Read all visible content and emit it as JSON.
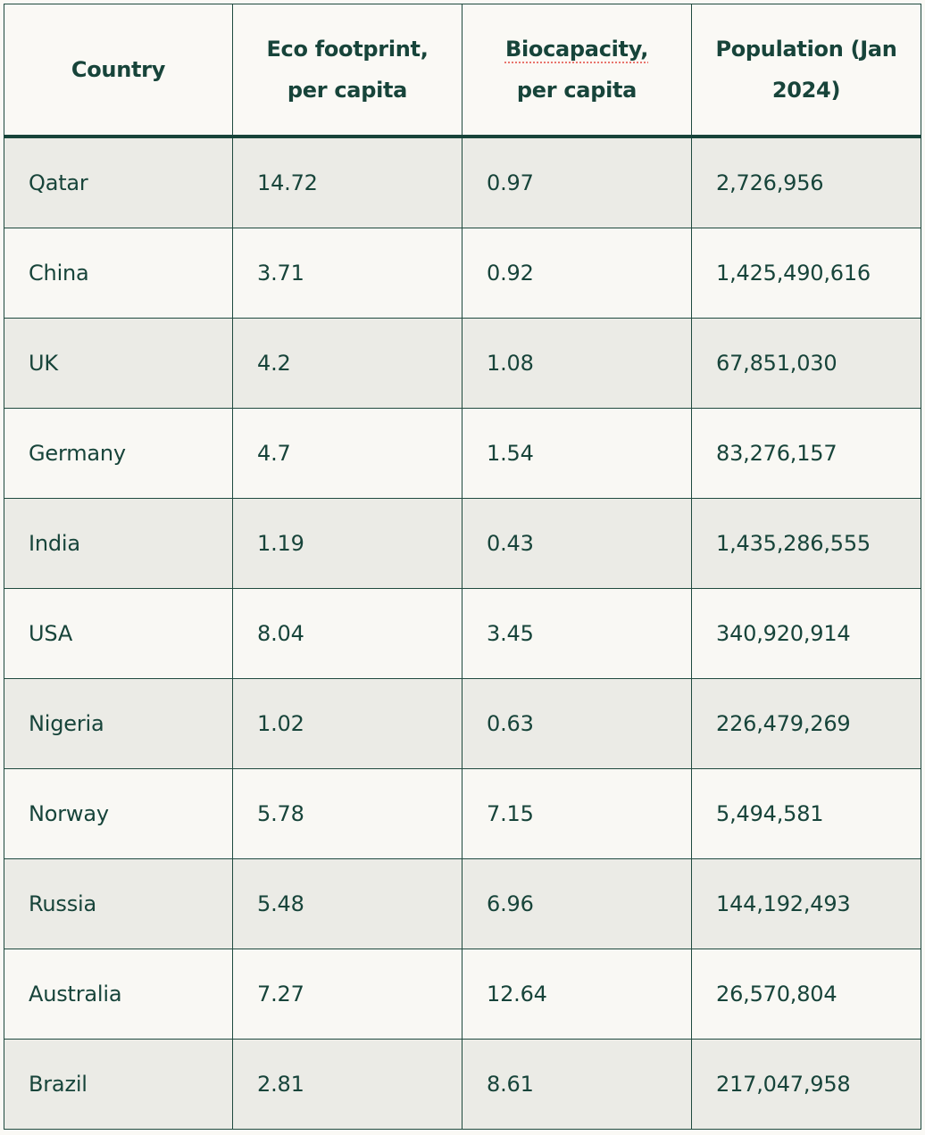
{
  "table": {
    "headers": [
      {
        "label": "Country"
      },
      {
        "label": "Eco footprint, per capita"
      },
      {
        "label": "Biocapacity,",
        "label_line2": "per capita"
      },
      {
        "label": "Population (Jan 2024)"
      }
    ],
    "rows": [
      {
        "country": "Qatar",
        "eco_footprint": "14.72",
        "biocapacity": "0.97",
        "population": "2,726,956"
      },
      {
        "country": "China",
        "eco_footprint": "3.71",
        "biocapacity": "0.92",
        "population": "1,425,490,616"
      },
      {
        "country": "UK",
        "eco_footprint": "4.2",
        "biocapacity": "1.08",
        "population": "67,851,030"
      },
      {
        "country": "Germany",
        "eco_footprint": "4.7",
        "biocapacity": "1.54",
        "population": "83,276,157"
      },
      {
        "country": "India",
        "eco_footprint": "1.19",
        "biocapacity": "0.43",
        "population": "1,435,286,555"
      },
      {
        "country": "USA",
        "eco_footprint": "8.04",
        "biocapacity": "3.45",
        "population": "340,920,914"
      },
      {
        "country": "Nigeria",
        "eco_footprint": "1.02",
        "biocapacity": "0.63",
        "population": "226,479,269"
      },
      {
        "country": "Norway",
        "eco_footprint": "5.78",
        "biocapacity": "7.15",
        "population": "5,494,581"
      },
      {
        "country": "Russia",
        "eco_footprint": "5.48",
        "biocapacity": "6.96",
        "population": "144,192,493"
      },
      {
        "country": "Australia",
        "eco_footprint": "7.27",
        "biocapacity": "12.64",
        "population": "26,570,804"
      },
      {
        "country": "Brazil",
        "eco_footprint": "2.81",
        "biocapacity": "8.61",
        "population": "217,047,958"
      }
    ]
  },
  "colors": {
    "text": "#17443a",
    "border": "#1f4a3f",
    "row_shaded": "#ebebe6",
    "row_plain": "#f9f8f4",
    "header_bg": "#faf9f5",
    "spellcheck_underline": "#e8746c"
  }
}
